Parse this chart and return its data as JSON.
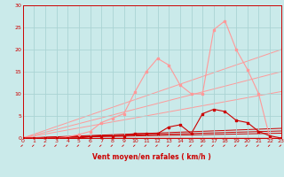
{
  "xlabel": "Vent moyen/en rafales ( km/h )",
  "xlim": [
    0,
    23
  ],
  "ylim": [
    0,
    30
  ],
  "xticks": [
    0,
    1,
    2,
    3,
    4,
    5,
    6,
    7,
    8,
    9,
    10,
    11,
    12,
    13,
    14,
    15,
    16,
    17,
    18,
    19,
    20,
    21,
    22,
    23
  ],
  "yticks": [
    0,
    5,
    10,
    15,
    20,
    25,
    30
  ],
  "background_color": "#caeaea",
  "grid_color": "#aad4d4",
  "line_color_dark": "#cc0000",
  "line_color_light": "#ff9999",
  "ref_lines_light": [
    {
      "x": [
        0,
        23
      ],
      "y": [
        0,
        20.0
      ]
    },
    {
      "x": [
        0,
        23
      ],
      "y": [
        0,
        15.0
      ]
    },
    {
      "x": [
        0,
        23
      ],
      "y": [
        0,
        10.5
      ]
    }
  ],
  "ref_lines_dark": [
    {
      "x": [
        0,
        23
      ],
      "y": [
        0,
        2.2
      ]
    },
    {
      "x": [
        0,
        23
      ],
      "y": [
        0,
        1.6
      ]
    },
    {
      "x": [
        0,
        23
      ],
      "y": [
        0,
        1.1
      ]
    }
  ],
  "x_light": [
    0,
    1,
    2,
    3,
    4,
    5,
    6,
    7,
    8,
    9,
    10,
    11,
    12,
    13,
    14,
    15,
    16,
    17,
    18,
    19,
    20,
    21,
    22,
    23
  ],
  "y_light": [
    0,
    0,
    0,
    0,
    0.3,
    0.8,
    1.5,
    3.5,
    4.5,
    5.5,
    10.5,
    15.0,
    18.0,
    16.5,
    12.0,
    10.0,
    10.0,
    24.5,
    26.5,
    20.0,
    15.5,
    10.0,
    0,
    0
  ],
  "x_dark": [
    0,
    1,
    2,
    3,
    4,
    5,
    6,
    7,
    8,
    9,
    10,
    11,
    12,
    13,
    14,
    15,
    16,
    17,
    18,
    19,
    20,
    21,
    22,
    23
  ],
  "y_dark": [
    0,
    0,
    0,
    0,
    0,
    0,
    0.3,
    0.5,
    0.5,
    0.5,
    1.0,
    1.0,
    1.0,
    2.5,
    3.0,
    1.0,
    5.5,
    6.5,
    6.0,
    4.0,
    3.5,
    1.5,
    0.5,
    0
  ]
}
